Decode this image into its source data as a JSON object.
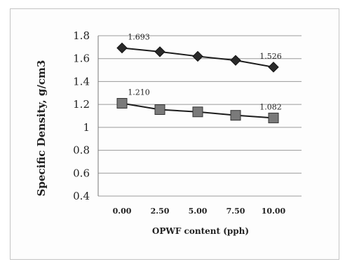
{
  "chart_data": {
    "type": "line",
    "title": "",
    "xlabel": "OPWF content (pph)",
    "ylabel": "Specific Density, g/cm3",
    "categories": [
      "0.00",
      "2.50",
      "5.00",
      "7.50",
      "10.00"
    ],
    "ylim": [
      0.4,
      1.8
    ],
    "yticks": [
      "1.8",
      "1.6",
      "1.4",
      "1.2",
      "1",
      "0.8",
      "0.6",
      "0.4"
    ],
    "grid": true,
    "legend": "none",
    "series": [
      {
        "values": [
          1.693,
          1.66,
          1.62,
          1.585,
          1.526
        ],
        "marker": "diamond",
        "color": "#2a2a2a",
        "labels": {
          "0": "1.693",
          "4": "1.526"
        }
      },
      {
        "values": [
          1.21,
          1.155,
          1.135,
          1.105,
          1.082
        ],
        "marker": "square",
        "color": "#7a7a7a",
        "labels": {
          "0": "1.210",
          "4": "1.082"
        }
      }
    ]
  }
}
